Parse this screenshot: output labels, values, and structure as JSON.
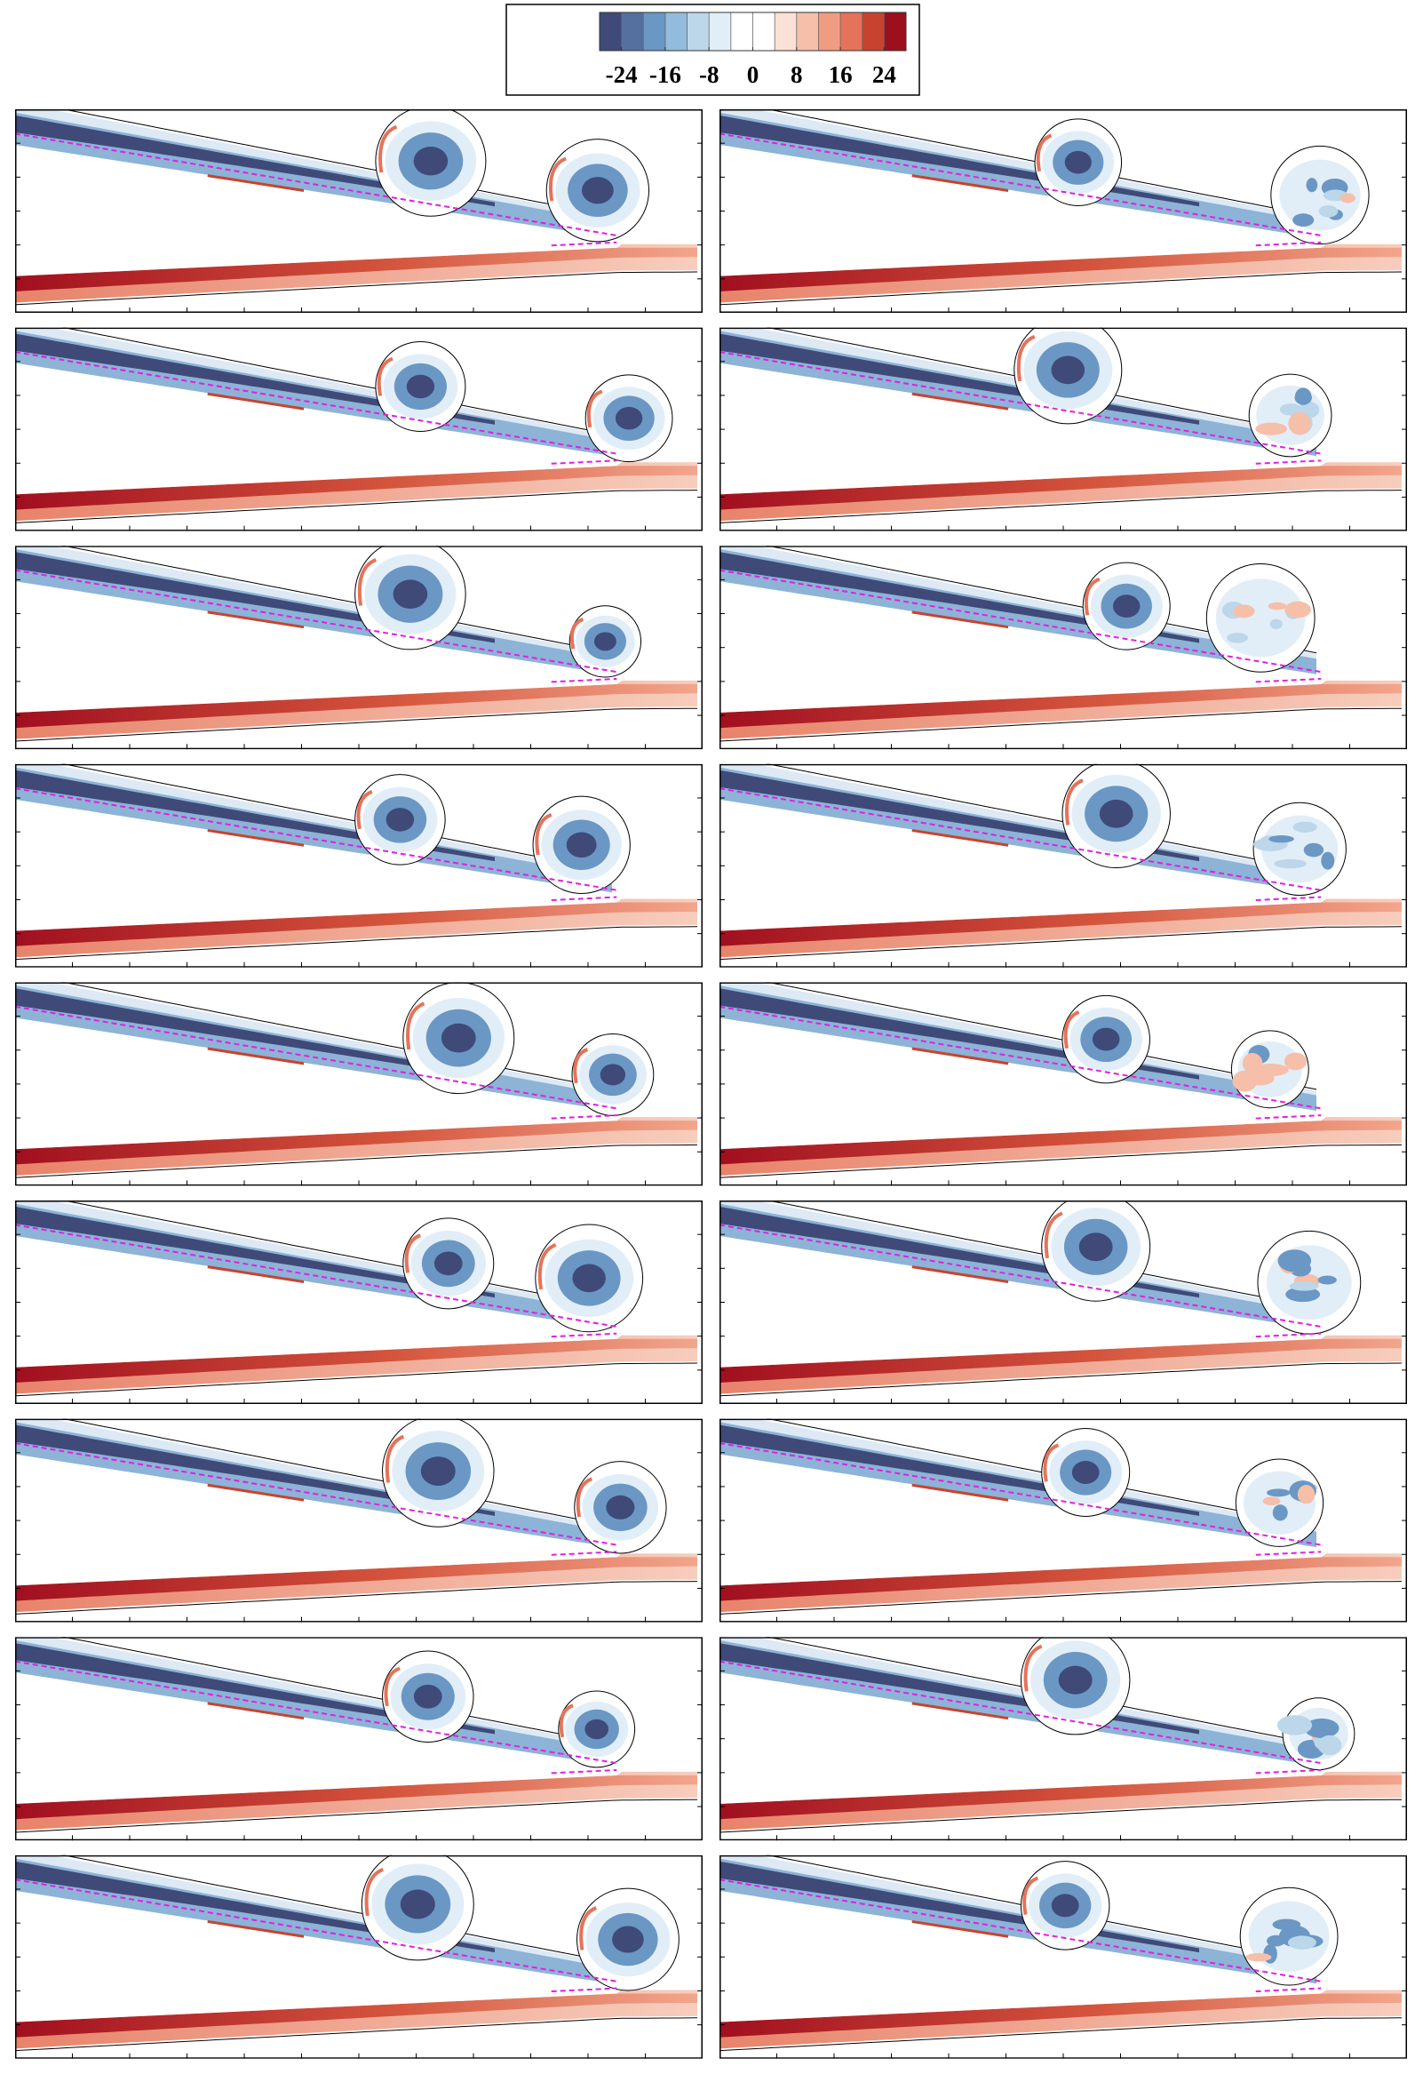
{
  "chart_data": {
    "type": "colorbar",
    "clim": [
      -28,
      28
    ],
    "ticks": [
      -24,
      -16,
      -8,
      0,
      8,
      16,
      24
    ],
    "colors": [
      "#3f4a78",
      "#55709f",
      "#6b97c4",
      "#93bbdb",
      "#bcd6ea",
      "#e2eef7",
      "#ffffff",
      "#ffffff",
      "#fbe1d6",
      "#f6bfa9",
      "#f09c82",
      "#e5735a",
      "#c8432f",
      "#9c0f1d"
    ]
  }
}
